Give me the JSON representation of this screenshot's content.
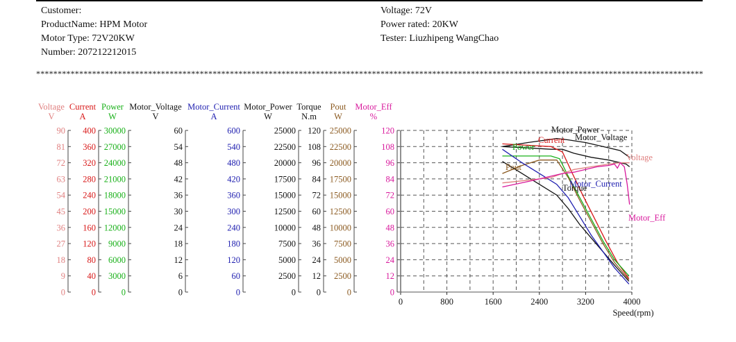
{
  "header": {
    "customer": "Customer:",
    "product": "ProductName: HPM Motor",
    "motor_type": "Motor Type: 72V20KW",
    "number": "Number: 207212212015",
    "voltage": "Voltage: 72V",
    "power_rated": "Power rated: 20KW",
    "tester": "Tester: Liuzhipeng WangChao"
  },
  "separator": "**************************************************************************************************************************************************************************************",
  "axes": [
    {
      "title": "Voltage",
      "unit": "V",
      "color": "#e08080",
      "ticks": [
        "90",
        "81",
        "72",
        "63",
        "54",
        "45",
        "36",
        "27",
        "18",
        "9",
        "0"
      ]
    },
    {
      "title": "Current",
      "unit": "A",
      "color": "#d81818",
      "ticks": [
        "400",
        "360",
        "320",
        "280",
        "240",
        "200",
        "160",
        "120",
        "80",
        "40",
        "0"
      ]
    },
    {
      "title": "Power",
      "unit": "W",
      "color": "#18b018",
      "ticks": [
        "30000",
        "27000",
        "24000",
        "21000",
        "18000",
        "15000",
        "12000",
        "9000",
        "6000",
        "3000",
        "0"
      ]
    },
    {
      "title": "Motor_Voltage",
      "unit": "V",
      "color": "#111111",
      "ticks": [
        "60",
        "54",
        "48",
        "42",
        "36",
        "30",
        "24",
        "18",
        "12",
        "6",
        "0"
      ]
    },
    {
      "title": "Motor_Current",
      "unit": "A",
      "color": "#2020b0",
      "ticks": [
        "600",
        "540",
        "480",
        "420",
        "360",
        "300",
        "240",
        "180",
        "120",
        "60",
        "0"
      ]
    },
    {
      "title": "Motor_Power",
      "unit": "W",
      "color": "#111111",
      "ticks": [
        "25000",
        "22500",
        "20000",
        "17500",
        "15000",
        "12500",
        "10000",
        "7500",
        "5000",
        "2500",
        "0"
      ]
    },
    {
      "title": "Torque",
      "unit": "N.m",
      "color": "#111111",
      "ticks": [
        "120",
        "108",
        "96",
        "84",
        "72",
        "60",
        "48",
        "36",
        "24",
        "12",
        "0"
      ]
    },
    {
      "title": "Pout",
      "unit": "W",
      "color": "#8b5a20",
      "ticks": [
        "25000",
        "22500",
        "20000",
        "17500",
        "15000",
        "12500",
        "10000",
        "7500",
        "5000",
        "2500",
        "0"
      ]
    },
    {
      "title": "Motor_Eff",
      "unit": "%",
      "color": "#d8189c",
      "ticks": [
        "120",
        "108",
        "96",
        "84",
        "72",
        "60",
        "48",
        "36",
        "24",
        "12",
        "0"
      ]
    }
  ],
  "chart_data": {
    "type": "line",
    "xlabel": "Speed(rpm)",
    "x_ticks": [
      "0",
      "800",
      "1600",
      "2400",
      "3200",
      "4000"
    ],
    "xlim": [
      0,
      4000
    ],
    "ylim": [
      0,
      120
    ],
    "grid": true,
    "series": [
      {
        "name": "Motor_Power",
        "color": "#111111",
        "x": [
          1760,
          2200,
          2700,
          2900,
          3200,
          3500,
          3800,
          3960
        ],
        "y": [
          108,
          111,
          114,
          113,
          111,
          108,
          105,
          100
        ]
      },
      {
        "name": "Motor_Voltage",
        "color": "#111111",
        "x": [
          1760,
          2200,
          2600,
          2800,
          3000,
          3300,
          3600,
          3900,
          3960
        ],
        "y": [
          108,
          107,
          106,
          106,
          103,
          100,
          98,
          95,
          93
        ]
      },
      {
        "name": "Current",
        "color": "#d81818",
        "x": [
          1760,
          2200,
          2600,
          2800,
          2950,
          3150,
          3350,
          3550,
          3750,
          3950
        ],
        "y": [
          110,
          109,
          108,
          104,
          90,
          72,
          55,
          38,
          22,
          10
        ]
      },
      {
        "name": "Power",
        "color": "#18b018",
        "x": [
          1760,
          2200,
          2600,
          2750,
          2900,
          3100,
          3300,
          3500,
          3700,
          3950
        ],
        "y": [
          101,
          101,
          101,
          99,
          86,
          70,
          54,
          38,
          24,
          12
        ]
      },
      {
        "name": "Pout",
        "color": "#8b5a20",
        "x": [
          1760,
          2100,
          2400,
          2700,
          2900,
          3100,
          3300,
          3500,
          3700,
          3950
        ],
        "y": [
          88,
          94,
          98,
          98,
          85,
          68,
          52,
          36,
          22,
          9
        ]
      },
      {
        "name": "Torque",
        "color": "#111111",
        "x": [
          1760,
          2100,
          2400,
          2700,
          2900,
          3100,
          3300,
          3500,
          3700,
          3950
        ],
        "y": [
          97,
          88,
          80,
          72,
          62,
          50,
          40,
          30,
          20,
          8
        ]
      },
      {
        "name": "Motor_Current",
        "color": "#2020b0",
        "x": [
          1760,
          2100,
          2400,
          2700,
          2900,
          3100,
          3300,
          3500,
          3700,
          3950
        ],
        "y": [
          106,
          96,
          88,
          80,
          70,
          56,
          42,
          30,
          18,
          6
        ]
      },
      {
        "name": "Voltage",
        "color": "#e08080",
        "x": [
          1760,
          2200,
          2600,
          2800,
          3000,
          3300,
          3600,
          3800,
          3960
        ],
        "y": [
          81,
          83,
          85,
          88,
          91,
          93,
          95,
          96,
          96
        ]
      },
      {
        "name": "Motor_Eff",
        "color": "#d8189c",
        "x": [
          1760,
          2200,
          2600,
          2800,
          3000,
          3200,
          3400,
          3600,
          3700,
          3750,
          3800,
          3870,
          3920,
          3960
        ],
        "y": [
          78,
          82,
          86,
          88,
          89,
          91,
          93,
          94,
          95,
          92,
          96,
          93,
          80,
          65
        ]
      }
    ],
    "labels": [
      {
        "text": "Motor_Power",
        "color": "#111111"
      },
      {
        "text": "Motor_Voltage",
        "color": "#111111"
      },
      {
        "text": "Current",
        "color": "#d81818"
      },
      {
        "text": "Power",
        "color": "#18b018"
      },
      {
        "text": "Pout",
        "color": "#8b5a20"
      },
      {
        "text": "Voltage",
        "color": "#e08080"
      },
      {
        "text": "Torque",
        "color": "#111111"
      },
      {
        "text": "Motor_Current",
        "color": "#2020b0"
      },
      {
        "text": "Motor_Eff",
        "color": "#d8189c"
      }
    ]
  }
}
